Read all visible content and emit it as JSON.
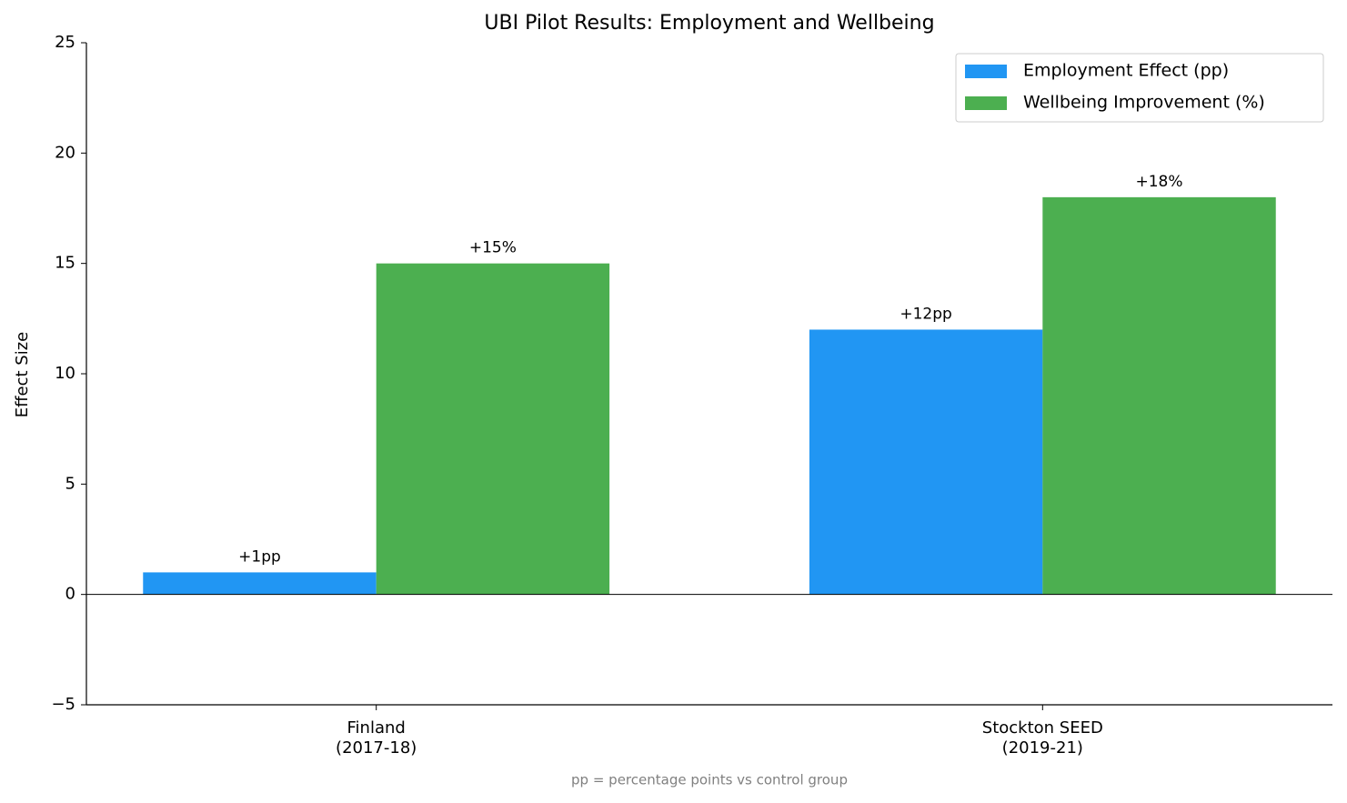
{
  "chart_data": {
    "type": "bar",
    "title": "UBI Pilot Results: Employment and Wellbeing",
    "y_label": "Effect Size",
    "footnote": "pp = percentage points vs control group",
    "categories": [
      "Finland\n(2017-18)",
      "Stockton SEED\n(2019-21)"
    ],
    "series": [
      {
        "name": "Employment Effect (pp)",
        "color": "#2196f3",
        "values": [
          1,
          12
        ],
        "value_labels": [
          "+1pp",
          "+12pp"
        ]
      },
      {
        "name": "Wellbeing Improvement (%)",
        "color": "#4caf50",
        "values": [
          15,
          18
        ],
        "value_labels": [
          "+15%",
          "+18%"
        ]
      }
    ],
    "ylim": [
      -5,
      25
    ],
    "yticks": [
      {
        "value": -5,
        "label": "−5"
      },
      0,
      5,
      10,
      15,
      20,
      25
    ],
    "legend": "upper right"
  }
}
